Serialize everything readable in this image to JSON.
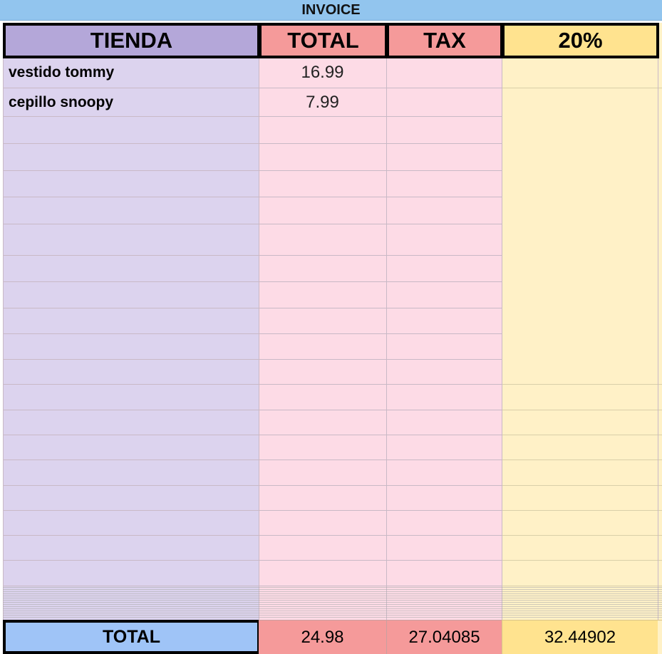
{
  "sheet": {
    "title": "INVOICE",
    "headers": {
      "tienda": "TIENDA",
      "total": "TOTAL",
      "tax": "TAX",
      "percent": "20%"
    },
    "items": [
      {
        "name": "vestido tommy",
        "total": "16.99"
      },
      {
        "name": "cepillo snoopy",
        "total": "7.99"
      }
    ],
    "footer": {
      "label": "TOTAL",
      "total": "24.98",
      "tax": "27.04085",
      "percent": "32.44902"
    }
  },
  "colors": {
    "title_bar": "#92c5ee",
    "tienda_header": "#b4a7d9",
    "tienda_column": "#dcd3ee",
    "total_header": "#f59a9a",
    "total_column": "#fddbe6",
    "percent_header": "#ffe38f",
    "percent_column": "#fff1c7",
    "footer_label": "#9fc4f7"
  }
}
